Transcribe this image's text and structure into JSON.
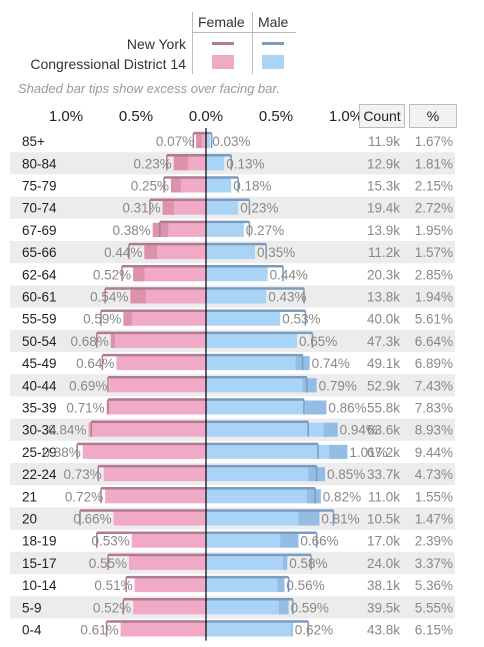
{
  "legend": {
    "female_label": "Female",
    "male_label": "Male",
    "region1": "New York",
    "region2": "Congressional District 14",
    "colors": {
      "ny_female": "#b07a91",
      "ny_male": "#7b9cc0",
      "cd_female": "#f0a9c6",
      "cd_male": "#a9d4f5",
      "female_tip": "#dc92ad",
      "male_tip": "#94bde6"
    }
  },
  "note": "Shaded bar tips show excess over facing bar.",
  "axis": {
    "ticks_left": [
      "1.0%",
      "0.5%"
    ],
    "tick_center": "0.0%",
    "ticks_right": [
      "0.5%",
      "1.0%"
    ]
  },
  "columns": {
    "count": "Count",
    "pct": "%"
  },
  "chart_data": {
    "type": "bar",
    "title": "",
    "xlim": [
      -1.0,
      1.0
    ],
    "categories": [
      "85+",
      "80-84",
      "75-79",
      "70-74",
      "67-69",
      "65-66",
      "62-64",
      "60-61",
      "55-59",
      "50-54",
      "45-49",
      "40-44",
      "35-39",
      "30-34",
      "25-29",
      "22-24",
      "21",
      "20",
      "18-19",
      "15-17",
      "10-14",
      "5-9",
      "0-4"
    ],
    "series": [
      {
        "name": "Female",
        "values": [
          0.07,
          0.23,
          0.25,
          0.31,
          0.38,
          0.44,
          0.52,
          0.54,
          0.59,
          0.68,
          0.64,
          0.69,
          0.71,
          0.84,
          0.88,
          0.73,
          0.72,
          0.66,
          0.53,
          0.55,
          0.51,
          0.52,
          0.61
        ]
      },
      {
        "name": "Male",
        "values": [
          0.03,
          0.13,
          0.18,
          0.23,
          0.27,
          0.35,
          0.44,
          0.43,
          0.53,
          0.65,
          0.74,
          0.79,
          0.86,
          0.94,
          1.01,
          0.85,
          0.82,
          0.81,
          0.66,
          0.58,
          0.56,
          0.59,
          0.62
        ]
      }
    ],
    "reference": {
      "female": [
        0.09,
        0.28,
        0.3,
        0.4,
        0.33,
        0.55,
        0.6,
        0.72,
        0.75,
        0.78,
        0.74,
        0.7,
        0.7,
        0.82,
        0.92,
        0.77,
        0.75,
        0.9,
        0.78,
        0.7,
        0.57,
        0.59,
        0.71
      ],
      "male": [
        0.04,
        0.18,
        0.23,
        0.31,
        0.31,
        0.43,
        0.55,
        0.7,
        0.71,
        0.76,
        0.69,
        0.72,
        0.7,
        0.73,
        0.8,
        0.79,
        0.78,
        0.91,
        0.79,
        0.75,
        0.59,
        0.62,
        0.73
      ]
    },
    "counts": [
      "11.9k",
      "12.9k",
      "15.3k",
      "19.4k",
      "13.9k",
      "11.2k",
      "20.3k",
      "13.8k",
      "40.0k",
      "47.3k",
      "49.1k",
      "52.9k",
      "55.8k",
      "63.6k",
      "67.2k",
      "33.7k",
      "11.0k",
      "10.5k",
      "17.0k",
      "24.0k",
      "38.1k",
      "39.5k",
      "43.8k"
    ],
    "percents": [
      "1.67%",
      "1.81%",
      "2.15%",
      "2.72%",
      "1.95%",
      "1.57%",
      "2.85%",
      "1.94%",
      "5.61%",
      "6.64%",
      "6.89%",
      "7.43%",
      "7.83%",
      "8.93%",
      "9.44%",
      "4.73%",
      "1.55%",
      "1.47%",
      "2.39%",
      "3.37%",
      "5.36%",
      "5.55%",
      "6.15%"
    ]
  }
}
